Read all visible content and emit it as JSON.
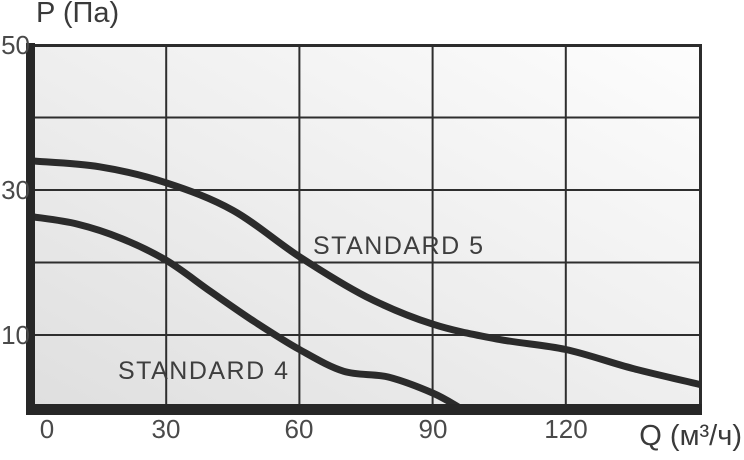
{
  "axis_titles": {
    "y": "P (Па)",
    "x": "Q (м³/ч)"
  },
  "chart_data": {
    "type": "line",
    "title": "",
    "xlabel": "Q (м³/ч)",
    "ylabel": "P (Па)",
    "xlim": [
      0,
      150
    ],
    "ylim": [
      0,
      50
    ],
    "grid": true,
    "x_tick_labels": [
      0,
      30,
      60,
      90,
      120
    ],
    "y_tick_labels": [
      50,
      30,
      10
    ],
    "x_gridlines": [
      30,
      60,
      90,
      120
    ],
    "y_gridlines": [
      10,
      20,
      30,
      40
    ],
    "legend_position": "inline-labels",
    "series": [
      {
        "name": "STANDARD 5",
        "x": [
          0,
          15,
          30,
          45,
          60,
          75,
          90,
          105,
          120,
          135,
          150
        ],
        "y": [
          34,
          33.2,
          31,
          27.2,
          20.8,
          15.3,
          11.5,
          9.4,
          8,
          5.4,
          3.2
        ]
      },
      {
        "name": "STANDARD 4",
        "x": [
          0,
          10,
          20,
          30,
          40,
          50,
          60,
          70,
          80,
          90,
          96
        ],
        "y": [
          26.3,
          25.3,
          23.3,
          20.3,
          16,
          11.8,
          8,
          5,
          4.2,
          2,
          0
        ]
      }
    ],
    "inline_labels": [
      {
        "text": "STANDARD 5",
        "q": 63,
        "p": 24.2
      },
      {
        "text": "STANDARD 4",
        "q": 19.2,
        "p": 6.9
      }
    ]
  },
  "colors": {
    "curve": "#2b2b2b",
    "grid": "#2e2e2e",
    "axis_bar": "#272727",
    "tick_text": "#4a4a4a",
    "title_text": "#3a3a3a",
    "plot_bg_dark": "#dfdfdf",
    "plot_bg_light": "#fdfdfd"
  }
}
